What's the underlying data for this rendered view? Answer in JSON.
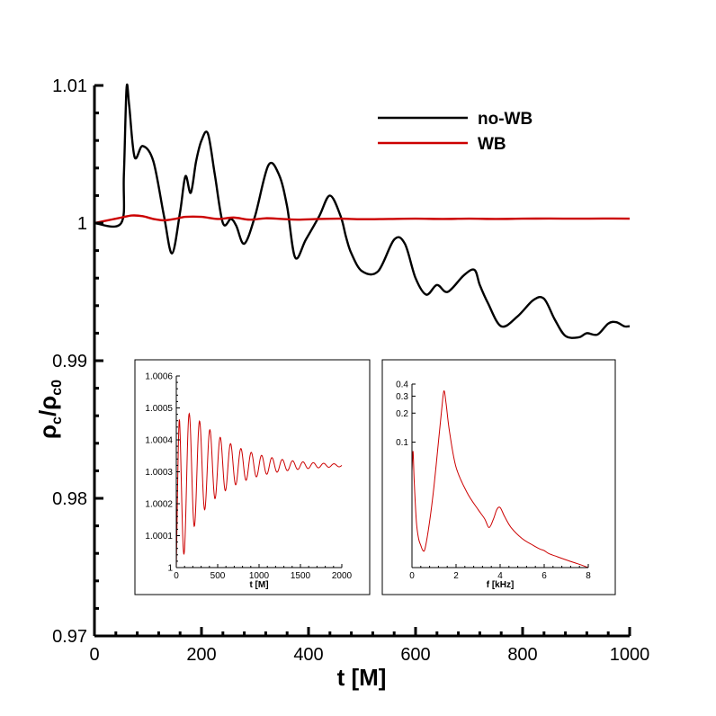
{
  "chart_data": [
    {
      "id": "main",
      "type": "line",
      "title": "",
      "xlabel": "t [M]",
      "ylabel_base": "ρ",
      "ylabel_sub1": "c",
      "ylabel_mid": "/ρ",
      "ylabel_sub2": "c0",
      "xlim": [
        0,
        1000
      ],
      "ylim": [
        0.97,
        1.01
      ],
      "xticks": [
        0,
        200,
        400,
        600,
        800,
        1000
      ],
      "xtick_labels": [
        "0",
        "200",
        "400",
        "600",
        "800",
        "1000"
      ],
      "yticks": [
        0.97,
        0.98,
        0.99,
        1.0,
        1.01
      ],
      "ytick_labels": [
        "0.97",
        "0.98",
        "0.99",
        "1",
        "1.01"
      ],
      "grid": false,
      "legend_position": "top-right",
      "series": [
        {
          "name": "no-WB",
          "color": "#000000",
          "x": [
            0,
            50,
            55,
            60,
            65,
            75,
            90,
            110,
            130,
            145,
            160,
            170,
            180,
            190,
            200,
            212,
            225,
            240,
            255,
            265,
            280,
            300,
            325,
            345,
            360,
            375,
            395,
            420,
            440,
            460,
            470,
            480,
            500,
            530,
            560,
            580,
            600,
            620,
            640,
            660,
            690,
            710,
            720,
            735,
            760,
            790,
            820,
            840,
            860,
            880,
            905,
            920,
            940,
            960,
            975,
            990,
            1000
          ],
          "y": [
            1.0,
            1.0,
            1.0035,
            1.0098,
            1.0085,
            1.0048,
            1.0056,
            1.0045,
            1.0005,
            0.9978,
            1.0008,
            1.0034,
            1.0022,
            1.0045,
            1.006,
            1.0065,
            1.0035,
            1.0,
            1.0003,
            0.9998,
            0.9985,
            1.0005,
            1.0042,
            1.0035,
            1.0012,
            0.9975,
            0.9988,
            1.0005,
            1.002,
            1.0005,
            0.999,
            0.9978,
            0.9965,
            0.9965,
            0.9988,
            0.9985,
            0.996,
            0.9948,
            0.9955,
            0.995,
            0.9962,
            0.9966,
            0.9955,
            0.9942,
            0.9925,
            0.9932,
            0.9944,
            0.9945,
            0.993,
            0.9918,
            0.9917,
            0.992,
            0.9919,
            0.9927,
            0.9928,
            0.9925,
            0.9925
          ]
        },
        {
          "name": "WB",
          "color": "#cc0000",
          "x": [
            0,
            25,
            50,
            70,
            90,
            110,
            130,
            150,
            170,
            200,
            230,
            260,
            290,
            320,
            350,
            380,
            420,
            460,
            500,
            550,
            600,
            650,
            700,
            750,
            800,
            850,
            900,
            950,
            1000
          ],
          "y": [
            1.0,
            1.0002,
            1.0004,
            1.00055,
            1.0005,
            1.0003,
            1.0002,
            1.0003,
            1.00045,
            1.00045,
            1.0003,
            1.0004,
            1.00025,
            1.00035,
            1.0003,
            1.00025,
            1.0003,
            1.00032,
            1.00028,
            1.0003,
            1.00032,
            1.0003,
            1.00032,
            1.0003,
            1.00032,
            1.00033,
            1.00032,
            1.00033,
            1.00032
          ]
        }
      ]
    },
    {
      "id": "inset-time",
      "type": "line",
      "title": "",
      "xlabel": "t [M]",
      "ylabel": "",
      "xlim": [
        0,
        2000
      ],
      "ylim": [
        1.0,
        1.0006
      ],
      "xticks": [
        0,
        500,
        1000,
        1500,
        2000
      ],
      "xtick_labels": [
        "0",
        "500",
        "1000",
        "1500",
        "2000"
      ],
      "yticks": [
        1.0,
        1.0001,
        1.0002,
        1.0003,
        1.0004,
        1.0005,
        1.0006
      ],
      "ytick_labels": [
        "1",
        "1.0001",
        "1.0002",
        "1.0003",
        "1.0004",
        "1.0005",
        "1.0006"
      ],
      "grid": false,
      "series": [
        {
          "name": "WB",
          "color": "#cc0000",
          "model": "damped_oscillation",
          "t_start": 0,
          "t_end": 2000,
          "baseline_start": 1.0002,
          "baseline_end": 1.00032,
          "initial_amplitude": 0.00027,
          "decay_time": 480,
          "period": 125
        }
      ]
    },
    {
      "id": "inset-spectrum",
      "type": "line",
      "title": "",
      "xlabel": "f [kHz]",
      "ylabel": "",
      "xlim": [
        0,
        8
      ],
      "ylim": [
        0.005,
        0.4
      ],
      "yscale": "log",
      "xticks": [
        0,
        2,
        4,
        6,
        8
      ],
      "xtick_labels": [
        "0",
        "2",
        "4",
        "6",
        "8"
      ],
      "yticks": [
        0.1,
        0.2,
        0.3,
        0.4
      ],
      "ytick_labels": [
        "0.1",
        "0.2",
        "0.3",
        "0.4"
      ],
      "grid": false,
      "series": [
        {
          "name": "spectrum",
          "color": "#cc0000",
          "x": [
            0,
            0.05,
            0.1,
            0.2,
            0.3,
            0.4,
            0.5,
            0.6,
            0.8,
            1.0,
            1.2,
            1.35,
            1.45,
            1.55,
            1.7,
            2.0,
            2.5,
            3.0,
            3.3,
            3.5,
            3.7,
            3.85,
            4.0,
            4.2,
            4.5,
            5.0,
            5.5,
            5.8,
            6.0,
            6.2,
            6.5,
            7.0,
            7.5,
            8.0
          ],
          "y": [
            0.05,
            0.08,
            0.04,
            0.015,
            0.01,
            0.0085,
            0.0075,
            0.008,
            0.015,
            0.035,
            0.1,
            0.22,
            0.34,
            0.25,
            0.13,
            0.055,
            0.03,
            0.02,
            0.016,
            0.013,
            0.016,
            0.02,
            0.021,
            0.017,
            0.013,
            0.01,
            0.0085,
            0.0078,
            0.0075,
            0.007,
            0.0066,
            0.006,
            0.0055,
            0.005
          ]
        }
      ]
    }
  ]
}
